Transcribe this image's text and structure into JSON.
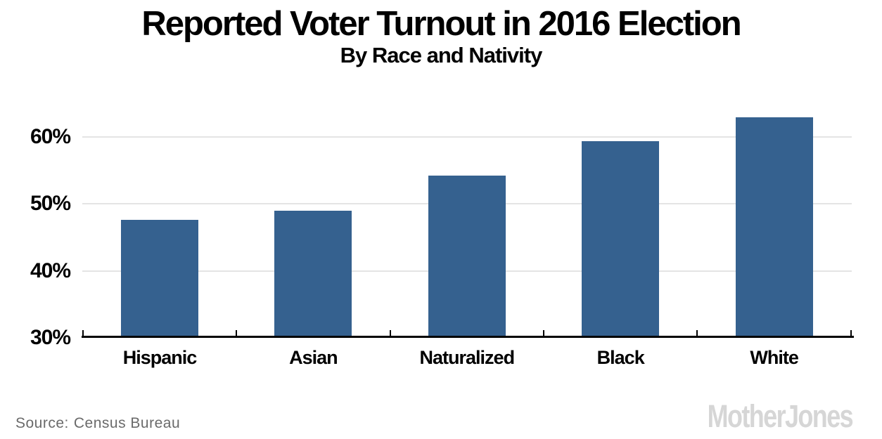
{
  "chart_data": {
    "type": "bar",
    "title": "Reported Voter Turnout in 2016 Election",
    "subtitle": "By Race and Nativity",
    "categories": [
      "Hispanic",
      "Asian",
      "Naturalized",
      "Black",
      "White"
    ],
    "values": [
      47.6,
      49.0,
      54.2,
      59.3,
      62.9
    ],
    "unit": "%",
    "xlabel": "",
    "ylabel": "",
    "ylim": [
      30,
      65.6
    ],
    "yticks": [
      30,
      40,
      50,
      60
    ],
    "ytick_labels": [
      "30%",
      "40%",
      "50%",
      "60%"
    ],
    "grid": "horizontal",
    "legend": "none",
    "bar_color": "#35618F"
  },
  "footer": {
    "source_label": "Source:",
    "source_value": "Census Bureau",
    "logo_text": "MotherJones"
  },
  "colors": {
    "bar_fill": "#35618F",
    "gridline": "#E4E4E4",
    "axis": "#000000",
    "title_text": "#000000",
    "source_text": "#6A6A6A",
    "logo_text": "#D6D6D6"
  }
}
